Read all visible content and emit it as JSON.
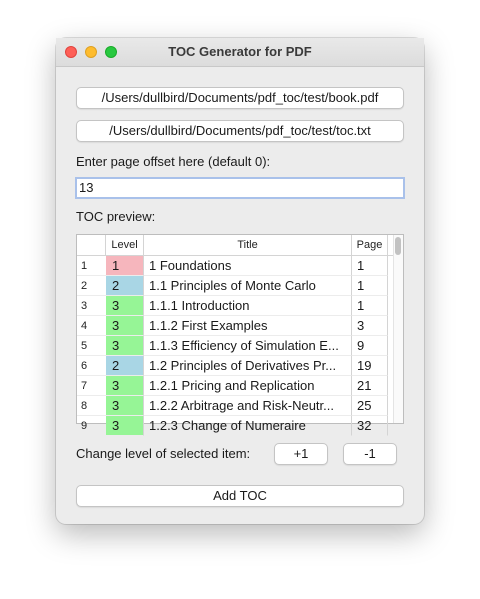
{
  "window": {
    "title": "TOC Generator for PDF"
  },
  "pdf_button": {
    "label": "/Users/dullbird/Documents/pdf_toc/test/book.pdf"
  },
  "toc_button": {
    "label": "/Users/dullbird/Documents/pdf_toc/test/toc.txt"
  },
  "offset": {
    "label": "Enter page offset here (default 0):",
    "value": "13"
  },
  "preview": {
    "label": "TOC preview:",
    "columns": [
      "Level",
      "Title",
      "Page"
    ],
    "level_colors": {
      "1": "#f6b6bd",
      "2": "#a9d6e5",
      "3": "#96f596"
    },
    "rows": [
      {
        "num": "1",
        "level": "1",
        "title": "1 Foundations",
        "page": "1"
      },
      {
        "num": "2",
        "level": "2",
        "title": "1.1 Principles of Monte Carlo",
        "page": "1"
      },
      {
        "num": "3",
        "level": "3",
        "title": "1.1.1 Introduction",
        "page": "1"
      },
      {
        "num": "4",
        "level": "3",
        "title": "1.1.2 First Examples",
        "page": "3"
      },
      {
        "num": "5",
        "level": "3",
        "title": "1.1.3 Efficiency of Simulation E...",
        "page": "9"
      },
      {
        "num": "6",
        "level": "2",
        "title": "1.2 Principles of Derivatives Pr...",
        "page": "19"
      },
      {
        "num": "7",
        "level": "3",
        "title": "1.2.1 Pricing and Replication",
        "page": "21"
      },
      {
        "num": "8",
        "level": "3",
        "title": "1.2.2 Arbitrage and Risk-Neutr...",
        "page": "25"
      },
      {
        "num": "9",
        "level": "3",
        "title": "1.2.3 Change of Numeraire",
        "page": "32"
      }
    ]
  },
  "change_level": {
    "label": "Change level of selected item:",
    "plus": "+1",
    "minus": "-1"
  },
  "add_button": {
    "label": "Add TOC"
  }
}
